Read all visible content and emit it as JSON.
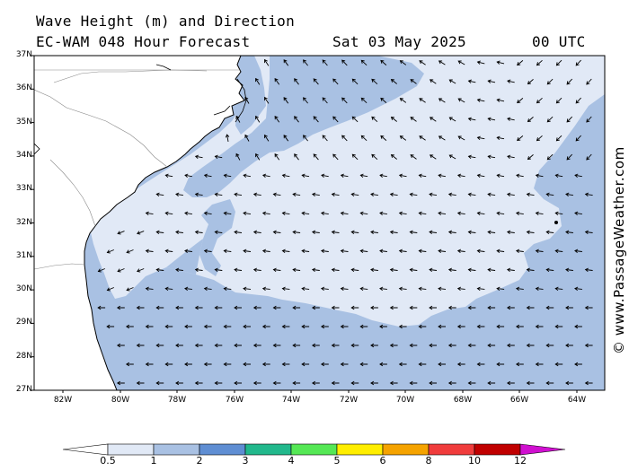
{
  "title": {
    "line1": "Wave Height (m) and Direction",
    "line2": "EC-WAM 048 Hour Forecast",
    "date": "Sat 03 May 2025",
    "time": "00 UTC"
  },
  "watermark": "© www.PassageWeather.com",
  "lat_labels": [
    "37N",
    "36N",
    "35N",
    "34N",
    "33N",
    "32N",
    "31N",
    "30N",
    "29N",
    "28N",
    "27N"
  ],
  "lon_labels": [
    "82W",
    "80W",
    "78W",
    "76W",
    "74W",
    "72W",
    "70W",
    "68W",
    "66W",
    "64W"
  ],
  "legend": {
    "values": [
      "0.5",
      "1",
      "2",
      "3",
      "4",
      "5",
      "6",
      "8",
      "10",
      "12"
    ],
    "colors": [
      "#e1e9f6",
      "#a9c1e3",
      "#5f8ed3",
      "#22b88c",
      "#55e855",
      "#ffee00",
      "#f5a300",
      "#f03c3c",
      "#c00000",
      "#d010d0"
    ]
  },
  "map": {
    "sea_colors": {
      "under_1m": "#e1e9f6",
      "1_to_2m": "#a9c1e3"
    },
    "land_color": "#ffffff",
    "arrow_color": "#000000"
  }
}
